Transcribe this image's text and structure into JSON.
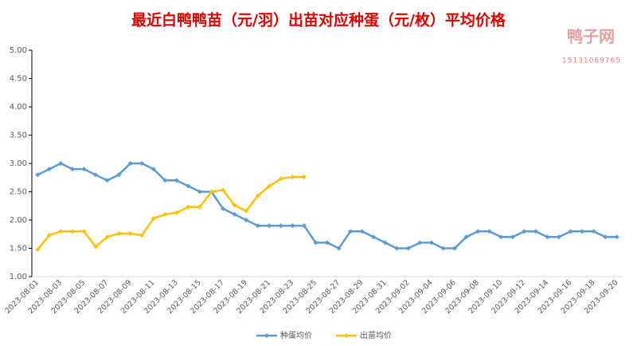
{
  "chart_data": {
    "type": "line",
    "title": "最近白鸭鸭苗（元/羽）出苗对应种蛋（元/枚）平均价格",
    "watermark": {
      "name": "鸭子网",
      "phone": "15131069765"
    },
    "categories": [
      "2023-08-01",
      null,
      "2023-08-03",
      null,
      "2023-08-05",
      null,
      "2023-08-07",
      null,
      "2023-08-09",
      null,
      "2023-08-11",
      null,
      "2023-08-13",
      null,
      "2023-08-15",
      null,
      "2023-08-17",
      null,
      "2023-08-19",
      null,
      "2023-08-21",
      null,
      "2023-08-23",
      null,
      "2023-08-25",
      null,
      "2023-08-27",
      null,
      "2023-08-29",
      null,
      "2023-08-31",
      null,
      "2023-09-02",
      null,
      "2023-09-04",
      null,
      "2023-09-06",
      null,
      "2023-09-08",
      null,
      "2023-09-10",
      null,
      "2023-09-12",
      null,
      "2023-09-14",
      null,
      "2023-09-16",
      null,
      "2023-09-18",
      null,
      "2023-09-20"
    ],
    "series": [
      {
        "name": "种蛋均价",
        "color": "#5b9bd5",
        "values": [
          2.8,
          2.9,
          3.0,
          2.9,
          2.9,
          2.8,
          2.7,
          2.8,
          3.0,
          3.0,
          2.9,
          2.7,
          2.7,
          2.6,
          2.5,
          2.5,
          2.2,
          2.1,
          2.0,
          1.9,
          1.9,
          1.9,
          1.9,
          1.9,
          1.6,
          1.6,
          1.5,
          1.8,
          1.8,
          1.7,
          1.6,
          1.5,
          1.5,
          1.6,
          1.6,
          1.5,
          1.5,
          1.7,
          1.8,
          1.8,
          1.7,
          1.7,
          1.8,
          1.8,
          1.7,
          1.7,
          1.8,
          1.8,
          1.8,
          1.7,
          1.7
        ]
      },
      {
        "name": "出苗均价",
        "color": "#ffc000",
        "values": [
          1.48,
          1.73,
          1.8,
          1.8,
          1.8,
          1.53,
          1.7,
          1.76,
          1.76,
          1.73,
          2.03,
          2.1,
          2.13,
          2.23,
          2.23,
          2.5,
          2.53,
          2.26,
          2.16,
          2.43,
          2.6,
          2.73,
          2.76,
          2.76,
          null,
          null,
          null,
          null,
          null,
          null,
          null,
          null,
          null,
          null,
          null,
          null,
          null,
          null,
          null,
          null,
          null,
          null,
          null,
          null,
          null,
          null,
          null,
          null,
          null,
          null,
          null
        ]
      }
    ],
    "ylim": [
      1,
      5
    ],
    "yticks": [
      {
        "value": 1,
        "label": "1.00"
      },
      {
        "value": 1.5,
        "label": "1.50"
      },
      {
        "value": 2,
        "label": "2.00"
      },
      {
        "value": 2.5,
        "label": "2.50"
      },
      {
        "value": 3,
        "label": "3.00"
      },
      {
        "value": 3.5,
        "label": "3.50"
      },
      {
        "value": 4,
        "label": "4.00"
      },
      {
        "value": 4.5,
        "label": "4.50"
      },
      {
        "value": 5,
        "label": "5.00"
      }
    ],
    "grid": false,
    "legend": "bottom"
  }
}
